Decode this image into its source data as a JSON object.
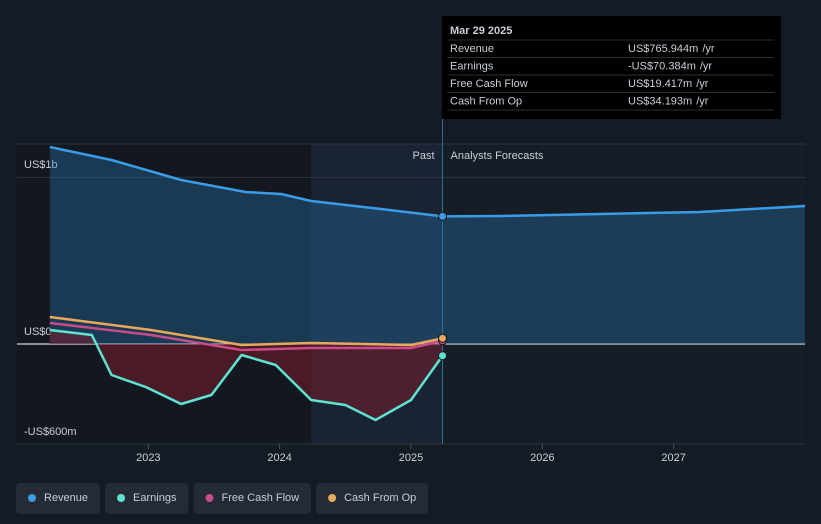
{
  "chart_data": {
    "type": "line",
    "xlim": [
      2022,
      2028
    ],
    "xticks": [
      2023,
      2024,
      2025,
      2026,
      2027
    ],
    "ylim": [
      -600,
      1200
    ],
    "yticks": [
      {
        "value": 1000,
        "label": "US$1b"
      },
      {
        "value": 0,
        "label": "US$0"
      },
      {
        "value": -600,
        "label": "-US$600m"
      }
    ],
    "grid": true,
    "past_label": "Past",
    "forecast_label": "Analysts Forecasts",
    "forecast_start": 2025.24,
    "past_highlight_start": 2024.24,
    "tooltip_date": "Mar 29 2025",
    "tooltip_unit": "/yr",
    "negative_color": "#ff4d55",
    "series": [
      {
        "name": "Revenue",
        "color": "#3a9ce6",
        "area": true,
        "x": [
          2022.25,
          2022.72,
          2023.25,
          2023.74,
          2024.01,
          2024.24,
          2024.77,
          2025.24,
          2025.68,
          2026.44,
          2027.2,
          2028.0
        ],
        "values": [
          1182,
          1104,
          984,
          912,
          900,
          858,
          810,
          765.944,
          768,
          780,
          792,
          828
        ],
        "value_labels": [
          null,
          null,
          null,
          null,
          null,
          null,
          null,
          "US$765.944m",
          null,
          null,
          null,
          null
        ]
      },
      {
        "name": "Earnings",
        "color": "#5ee3d0",
        "area": true,
        "x": [
          2022.25,
          2022.57,
          2022.72,
          2022.98,
          2023.25,
          2023.48,
          2023.71,
          2023.97,
          2024.24,
          2024.5,
          2024.73,
          2025.0,
          2025.24
        ],
        "values": [
          84,
          54,
          -186,
          -258,
          -360,
          -306,
          -66,
          -126,
          -336,
          -366,
          -456,
          -336,
          -70.384
        ],
        "value_labels": [
          null,
          null,
          null,
          null,
          null,
          null,
          null,
          null,
          null,
          null,
          null,
          null,
          "-US$70.384m"
        ]
      },
      {
        "name": "Free Cash Flow",
        "color": "#c94b8a",
        "area": false,
        "x": [
          2022.25,
          2023.02,
          2023.71,
          2024.24,
          2025.0,
          2025.24
        ],
        "values": [
          126,
          54,
          -36,
          -24,
          -24,
          19.417
        ],
        "value_labels": [
          null,
          null,
          null,
          null,
          null,
          "US$19.417m"
        ]
      },
      {
        "name": "Cash From Op",
        "color": "#e8a95a",
        "area": false,
        "x": [
          2022.25,
          2023.02,
          2023.71,
          2024.24,
          2025.0,
          2025.24
        ],
        "values": [
          162,
          84,
          -6,
          6,
          -6,
          34.193
        ],
        "value_labels": [
          null,
          null,
          null,
          null,
          null,
          "US$34.193m"
        ]
      }
    ]
  }
}
